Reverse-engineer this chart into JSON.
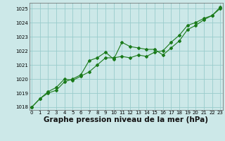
{
  "x": [
    0,
    1,
    2,
    3,
    4,
    5,
    6,
    7,
    8,
    9,
    10,
    11,
    12,
    13,
    14,
    15,
    16,
    17,
    18,
    19,
    20,
    21,
    22,
    23
  ],
  "series1": [
    1018.0,
    1018.6,
    1019.0,
    1019.2,
    1019.8,
    1020.0,
    1020.3,
    1021.3,
    1021.5,
    1021.9,
    1021.4,
    1022.6,
    1022.3,
    1022.2,
    1022.1,
    1022.1,
    1021.7,
    1022.2,
    1022.7,
    1023.5,
    1023.8,
    1024.2,
    1024.5,
    1025.0
  ],
  "series2": [
    1018.0,
    1018.6,
    1019.1,
    1019.4,
    1020.0,
    1019.9,
    1020.2,
    1020.5,
    1021.0,
    1021.5,
    1021.5,
    1021.6,
    1021.5,
    1021.7,
    1021.6,
    1021.9,
    1022.0,
    1022.6,
    1023.1,
    1023.8,
    1024.0,
    1024.3,
    1024.5,
    1025.1
  ],
  "line_color": "#1a7a1a",
  "bg_color": "#cce8e8",
  "grid_color": "#99cccc",
  "xlabel": "Graphe pression niveau de la mer (hPa)",
  "ylim_min": 1017.8,
  "ylim_max": 1025.4,
  "yticks": [
    1018,
    1019,
    1020,
    1021,
    1022,
    1023,
    1024,
    1025
  ],
  "xticks": [
    0,
    1,
    2,
    3,
    4,
    5,
    6,
    7,
    8,
    9,
    10,
    11,
    12,
    13,
    14,
    15,
    16,
    17,
    18,
    19,
    20,
    21,
    22,
    23
  ],
  "xlabel_fontsize": 7.5
}
